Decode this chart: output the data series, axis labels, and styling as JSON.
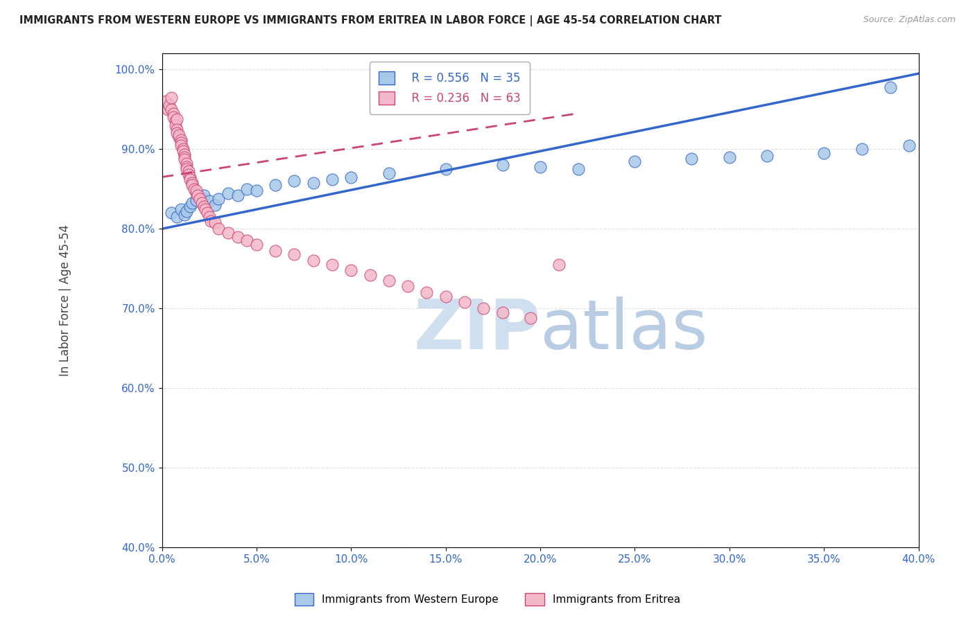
{
  "title": "IMMIGRANTS FROM WESTERN EUROPE VS IMMIGRANTS FROM ERITREA IN LABOR FORCE | AGE 45-54 CORRELATION CHART",
  "source": "Source: ZipAtlas.com",
  "ylabel": "In Labor Force | Age 45-54",
  "legend_blue_r": "R = 0.556",
  "legend_blue_n": "N = 35",
  "legend_pink_r": "R = 0.236",
  "legend_pink_n": "N = 63",
  "series_blue_label": "Immigrants from Western Europe",
  "series_pink_label": "Immigrants from Eritrea",
  "blue_color": "#a8c8e8",
  "pink_color": "#f4b8c8",
  "blue_line_color": "#3366cc",
  "pink_line_color": "#cc4477",
  "pink_line_dash": [
    6,
    4
  ],
  "watermark_zip": "ZIP",
  "watermark_atlas": "atlas",
  "watermark_color_zip": "#c8d8ee",
  "watermark_color_atlas": "#b8c8e0",
  "xlim": [
    0.0,
    0.4
  ],
  "ylim": [
    0.4,
    1.02
  ],
  "background_color": "#ffffff",
  "grid_color": "#e0e0e0",
  "yticks": [
    0.4,
    0.5,
    0.6,
    0.7,
    0.8,
    0.9,
    1.0
  ],
  "xticks": [
    0.0,
    0.05,
    0.1,
    0.15,
    0.2,
    0.25,
    0.3,
    0.35,
    0.4
  ],
  "blue_x": [
    0.005,
    0.008,
    0.01,
    0.012,
    0.013,
    0.015,
    0.016,
    0.018,
    0.02,
    0.022,
    0.025,
    0.028,
    0.03,
    0.035,
    0.04,
    0.045,
    0.05,
    0.06,
    0.07,
    0.08,
    0.09,
    0.1,
    0.12,
    0.15,
    0.18,
    0.2,
    0.22,
    0.25,
    0.28,
    0.3,
    0.32,
    0.35,
    0.37,
    0.385,
    0.395
  ],
  "blue_y": [
    0.82,
    0.815,
    0.825,
    0.818,
    0.822,
    0.828,
    0.832,
    0.836,
    0.84,
    0.842,
    0.835,
    0.83,
    0.838,
    0.845,
    0.842,
    0.85,
    0.848,
    0.855,
    0.86,
    0.858,
    0.862,
    0.865,
    0.87,
    0.875,
    0.88,
    0.878,
    0.875,
    0.885,
    0.888,
    0.89,
    0.892,
    0.895,
    0.9,
    0.978,
    0.905
  ],
  "pink_x": [
    0.002,
    0.003,
    0.004,
    0.005,
    0.005,
    0.006,
    0.006,
    0.007,
    0.007,
    0.008,
    0.008,
    0.008,
    0.009,
    0.009,
    0.01,
    0.01,
    0.01,
    0.011,
    0.011,
    0.012,
    0.012,
    0.012,
    0.013,
    0.013,
    0.013,
    0.014,
    0.014,
    0.015,
    0.015,
    0.016,
    0.016,
    0.017,
    0.018,
    0.018,
    0.019,
    0.02,
    0.021,
    0.022,
    0.023,
    0.024,
    0.025,
    0.026,
    0.028,
    0.03,
    0.035,
    0.04,
    0.045,
    0.05,
    0.06,
    0.07,
    0.08,
    0.09,
    0.1,
    0.11,
    0.12,
    0.13,
    0.14,
    0.15,
    0.16,
    0.17,
    0.18,
    0.195,
    0.21
  ],
  "pink_y": [
    0.96,
    0.95,
    0.955,
    0.965,
    0.95,
    0.945,
    0.94,
    0.935,
    0.93,
    0.938,
    0.925,
    0.92,
    0.915,
    0.918,
    0.912,
    0.908,
    0.905,
    0.9,
    0.898,
    0.893,
    0.89,
    0.887,
    0.882,
    0.878,
    0.875,
    0.872,
    0.868,
    0.865,
    0.862,
    0.858,
    0.855,
    0.85,
    0.845,
    0.848,
    0.842,
    0.838,
    0.832,
    0.828,
    0.825,
    0.82,
    0.815,
    0.81,
    0.808,
    0.8,
    0.795,
    0.79,
    0.785,
    0.78,
    0.772,
    0.768,
    0.76,
    0.755,
    0.748,
    0.742,
    0.735,
    0.728,
    0.72,
    0.715,
    0.708,
    0.7,
    0.695,
    0.688,
    0.755
  ],
  "blue_trend_x": [
    0.0,
    0.4
  ],
  "blue_trend_y": [
    0.8,
    0.995
  ],
  "pink_trend_x": [
    0.0,
    0.22
  ],
  "pink_trend_y": [
    0.865,
    0.945
  ]
}
